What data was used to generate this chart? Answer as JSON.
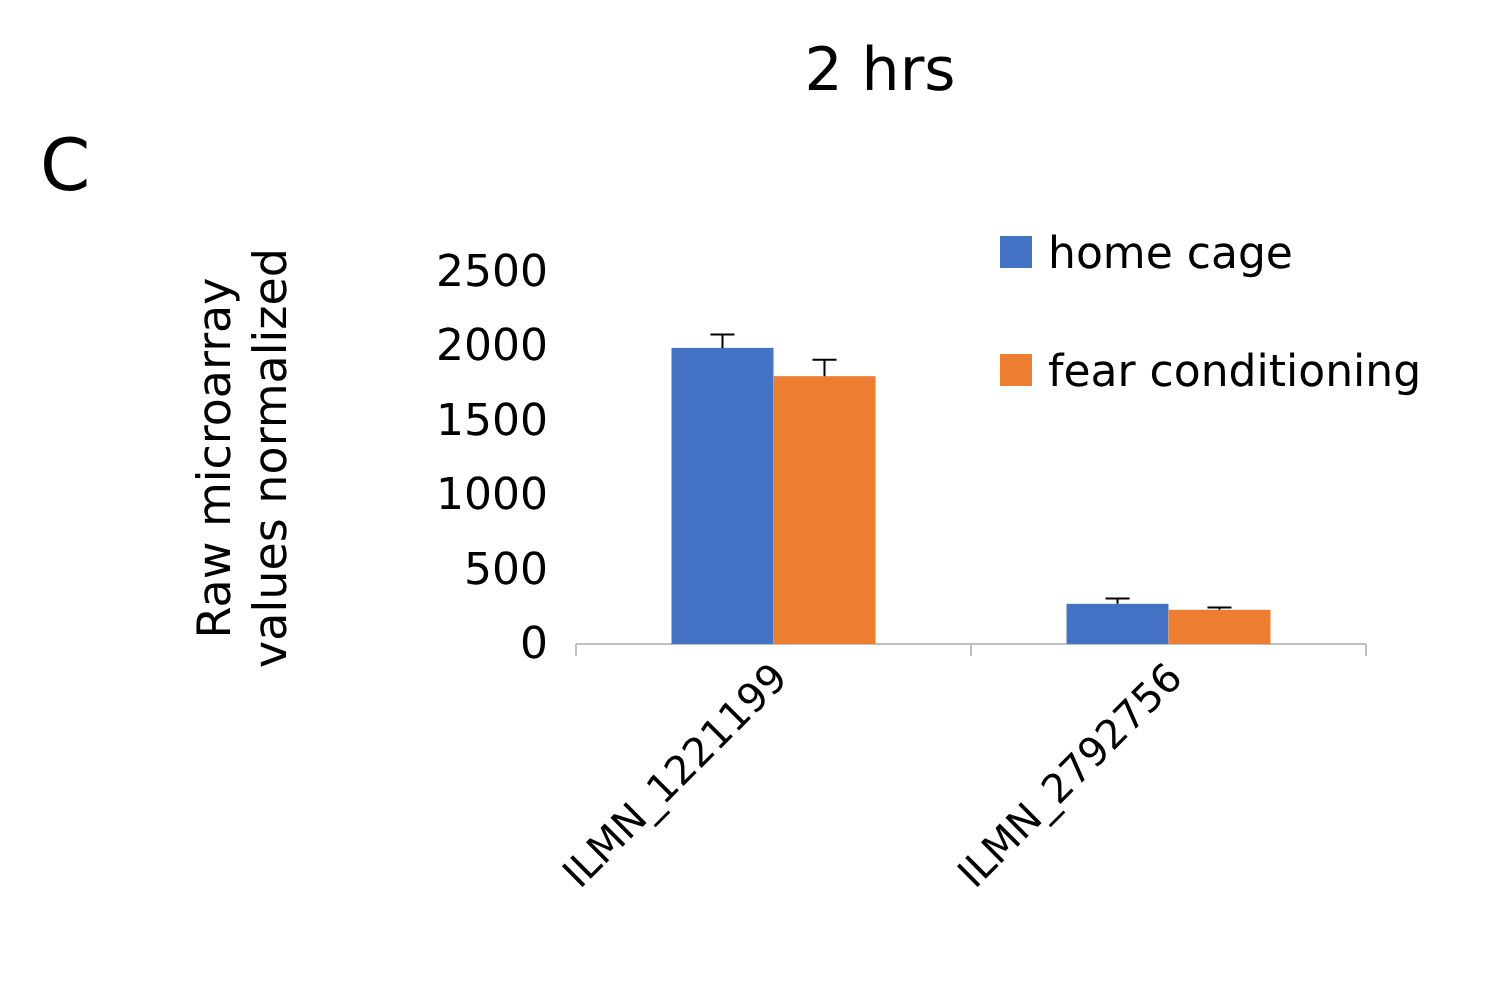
{
  "chart_data": {
    "type": "bar",
    "title": "2 hrs",
    "ylabel": "Raw microarray values normalized",
    "annotations": [
      "C"
    ],
    "categories": [
      "ILMN_1221199",
      "ILMN_2792756"
    ],
    "series": [
      {
        "name": "home cage",
        "color": "#4472c4",
        "values": [
          1990,
          270
        ],
        "errors": [
          90,
          35
        ]
      },
      {
        "name": "fear conditioning",
        "color": "#ed7d31",
        "values": [
          1800,
          230
        ],
        "errors": [
          110,
          15
        ]
      }
    ],
    "ylim": [
      0,
      2500
    ],
    "yticks": [
      0,
      500,
      1000,
      1500,
      2000,
      2500
    ],
    "grid": false,
    "legend": "top right"
  }
}
